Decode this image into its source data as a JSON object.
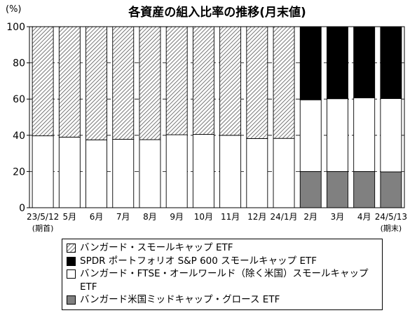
{
  "chart_data": {
    "type": "bar",
    "stacked": true,
    "title": "各資産の組入比率の推移(月末値)",
    "ylabel": "(%)",
    "ylim": [
      0,
      100
    ],
    "yticks": [
      0,
      20,
      40,
      60,
      80,
      100
    ],
    "grid": "dashed horizontal",
    "categories": [
      "23/5/12",
      "5月",
      "6月",
      "7月",
      "8月",
      "9月",
      "10月",
      "11月",
      "12月",
      "24/1月",
      "2月",
      "3月",
      "4月",
      "24/5/13"
    ],
    "category_notes": [
      "(期首)",
      "",
      "",
      "",
      "",
      "",
      "",
      "",
      "",
      "",
      "",
      "",
      "",
      "(期末)"
    ],
    "series": [
      {
        "name": "バンガード米国ミッドキャップ・グロース ETF",
        "key": "midcap",
        "color": "#808080",
        "values": [
          0,
          0,
          0,
          0,
          0,
          0,
          0,
          0,
          0,
          0,
          20,
          20,
          20,
          19.8
        ]
      },
      {
        "name": "バンガード・FTSE・オールワールド（除く米国）スモールキャップETF",
        "key": "allworld",
        "color": "#ffffff",
        "values": [
          39.7,
          39,
          37.5,
          37.8,
          37.6,
          40.3,
          40.5,
          40,
          38.2,
          38.3,
          39.6,
          40.2,
          40.7,
          40.5
        ]
      },
      {
        "name": "バンガード・スモールキャップ ETF",
        "key": "smallcap",
        "color": "hatch",
        "values": [
          60.3,
          61,
          62.5,
          62.2,
          62.4,
          59.7,
          59.5,
          60,
          61.8,
          61.7,
          0,
          0,
          0,
          0
        ]
      },
      {
        "name": "SPDR ポートフォリオ S&P 600 スモールキャップ ETF",
        "key": "spdr",
        "color": "#000000",
        "values": [
          0,
          0,
          0,
          0,
          0,
          0,
          0,
          0,
          0,
          0,
          40.4,
          39.8,
          39.3,
          39.7
        ]
      }
    ]
  },
  "legend": [
    {
      "key": "smallcap",
      "label": "バンガード・スモールキャップ ETF"
    },
    {
      "key": "spdr",
      "label": "SPDR ポートフォリオ S&P 600 スモールキャップ ETF"
    },
    {
      "key": "allworld",
      "label": "バンガード・FTSE・オールワールド（除く米国）スモールキャップETF"
    },
    {
      "key": "midcap",
      "label": "バンガード米国ミッドキャップ・グロース ETF"
    }
  ]
}
